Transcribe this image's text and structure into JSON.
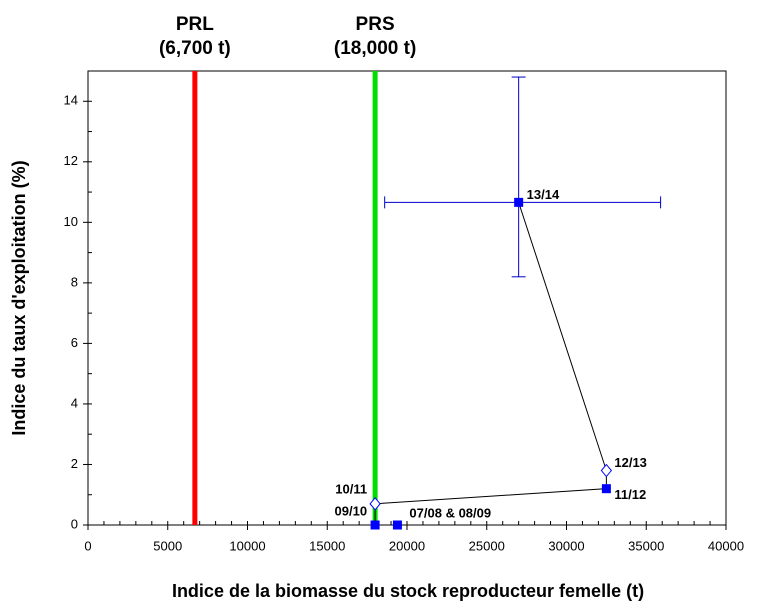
{
  "chart_data": {
    "type": "line",
    "xlabel": "Indice de la biomasse du stock reproducteur femelle (t)",
    "ylabel": "Indice du taux d'exploitation (%)",
    "xlim": [
      0,
      40000
    ],
    "xticks": [
      0,
      5000,
      10000,
      15000,
      20000,
      25000,
      30000,
      35000,
      40000
    ],
    "ylim": [
      0,
      15
    ],
    "yticks": [
      0,
      2,
      4,
      6,
      8,
      10,
      12,
      14
    ],
    "xminor_step": 1000,
    "yminor_step": 1,
    "vlines": [
      {
        "x": 6700,
        "color": "#ff0000",
        "label": [
          "PRL",
          "(6,700 t)"
        ]
      },
      {
        "x": 18000,
        "color": "#00dd00",
        "label": [
          "PRS",
          "(18,000 t)"
        ]
      }
    ],
    "series": [
      {
        "color": "#0000ff",
        "line_color": "#000000",
        "x": [
          19400,
          18000,
          18000,
          32500,
          32500,
          27000
        ],
        "values": [
          0,
          0,
          0.7,
          1.2,
          1.8,
          10.66
        ],
        "markers": [
          "square",
          "square",
          "diamond",
          "square",
          "diamond",
          "square"
        ],
        "labels": [
          "07/08 & 08/09",
          "09/10",
          "10/11",
          "11/12",
          "12/13",
          "13/14"
        ]
      }
    ],
    "error_bars": {
      "point": 5,
      "xrange": [
        18600,
        35900
      ],
      "yrange": [
        8.2,
        14.8
      ]
    }
  }
}
